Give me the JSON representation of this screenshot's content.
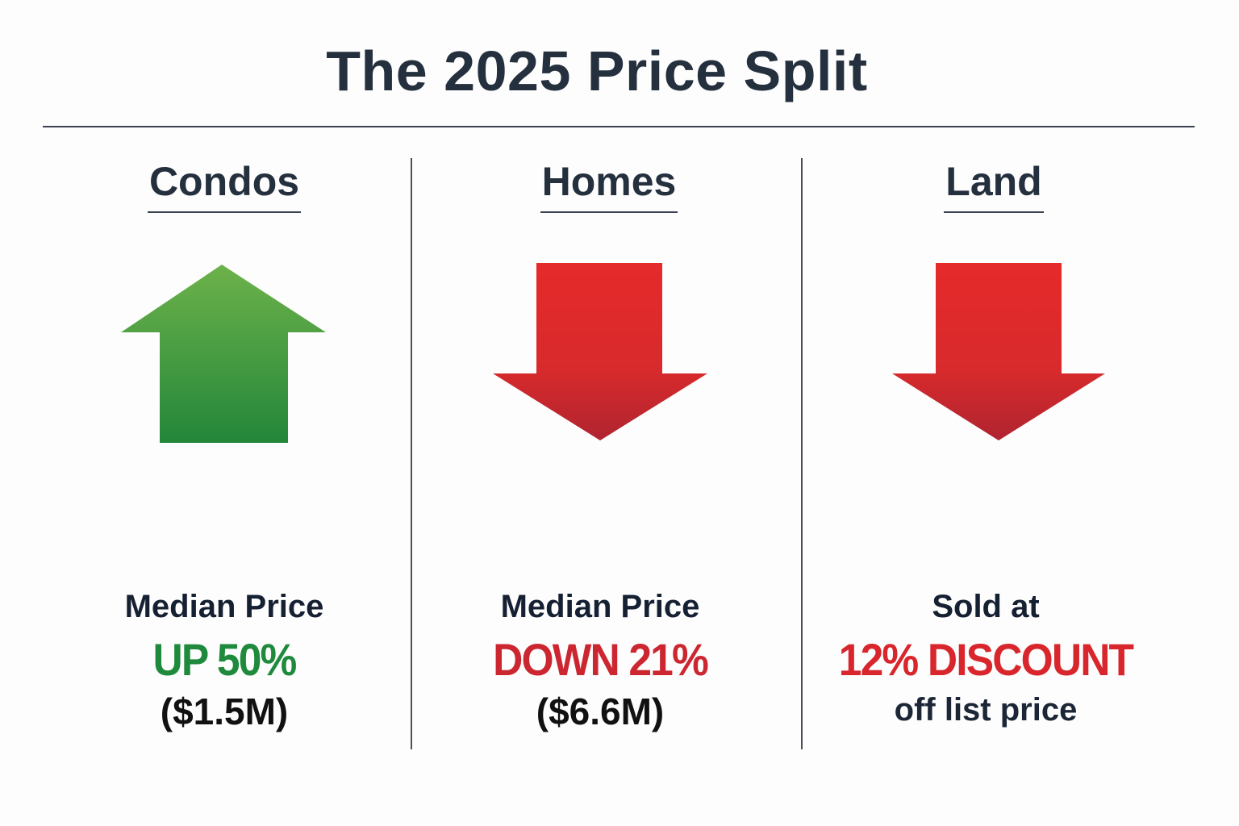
{
  "title": "The 2025 Price Split",
  "colors": {
    "up": "#2e9a44",
    "down": "#e02a2a",
    "text": "#25303f"
  },
  "columns": [
    {
      "heading": "Condos",
      "icon": "arrow-up-icon",
      "line1": "Median Price",
      "highlight": "UP 50%",
      "line3": "($1.5M)",
      "color": "#1f8a3c"
    },
    {
      "heading": "Homes",
      "icon": "arrow-down-icon",
      "line1": "Median Price",
      "highlight": "DOWN 21%",
      "line3": "($6.6M)",
      "color": "#cc2630"
    },
    {
      "heading": "Land",
      "icon": "arrow-down-icon",
      "line1": "Sold at",
      "highlight": "12% DISCOUNT",
      "line3": "off list price",
      "color": "#d8262c"
    }
  ]
}
